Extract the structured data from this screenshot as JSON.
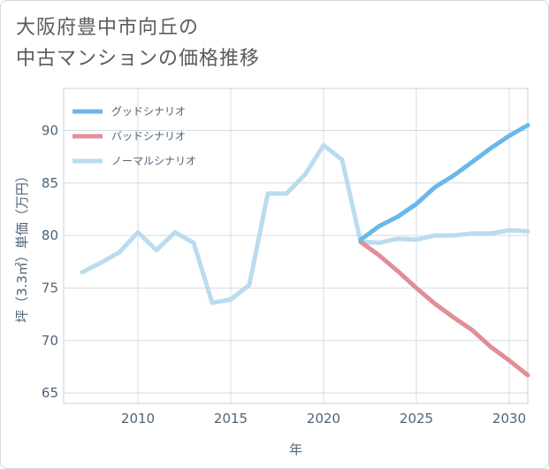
{
  "title_lines": [
    "大阪府豊中市向丘の",
    "中古マンションの価格推移"
  ],
  "chart_data": {
    "type": "line",
    "xlabel": "年",
    "ylabel": "坪（3.3㎡）単価（万円）",
    "xlim": [
      2006,
      2031
    ],
    "ylim": [
      64,
      94
    ],
    "xticks": [
      2010,
      2015,
      2020,
      2025,
      2030
    ],
    "yticks": [
      65,
      70,
      75,
      80,
      85,
      90
    ],
    "grid": true,
    "legend_position": "top-left",
    "series": [
      {
        "name": "グッドシナリオ",
        "color": "#6ab8ea",
        "x": [
          2022,
          2023,
          2024,
          2025,
          2026,
          2027,
          2028,
          2029,
          2030,
          2031
        ],
        "values": [
          79.6,
          80.9,
          81.8,
          83.0,
          84.6,
          85.7,
          87.0,
          88.3,
          89.5,
          90.5
        ]
      },
      {
        "name": "バッドシナリオ",
        "color": "#e08f98",
        "x": [
          2022,
          2023,
          2024,
          2025,
          2026,
          2027,
          2028,
          2029,
          2030,
          2031
        ],
        "values": [
          79.4,
          78.1,
          76.6,
          75.0,
          73.5,
          72.2,
          71.0,
          69.4,
          68.1,
          66.7
        ]
      },
      {
        "name": "ノーマルシナリオ",
        "color": "#b9dcee",
        "x": [
          2007,
          2008,
          2009,
          2010,
          2011,
          2012,
          2013,
          2014,
          2015,
          2016,
          2017,
          2018,
          2019,
          2020,
          2021,
          2022,
          2023,
          2024,
          2025,
          2026,
          2027,
          2028,
          2029,
          2030,
          2031
        ],
        "values": [
          76.5,
          77.4,
          78.4,
          80.3,
          78.6,
          80.3,
          79.3,
          73.6,
          73.9,
          75.3,
          84.0,
          84.0,
          85.8,
          88.6,
          87.2,
          79.4,
          79.3,
          79.7,
          79.6,
          80.0,
          80.0,
          80.2,
          80.2,
          80.5,
          80.4
        ]
      }
    ]
  }
}
